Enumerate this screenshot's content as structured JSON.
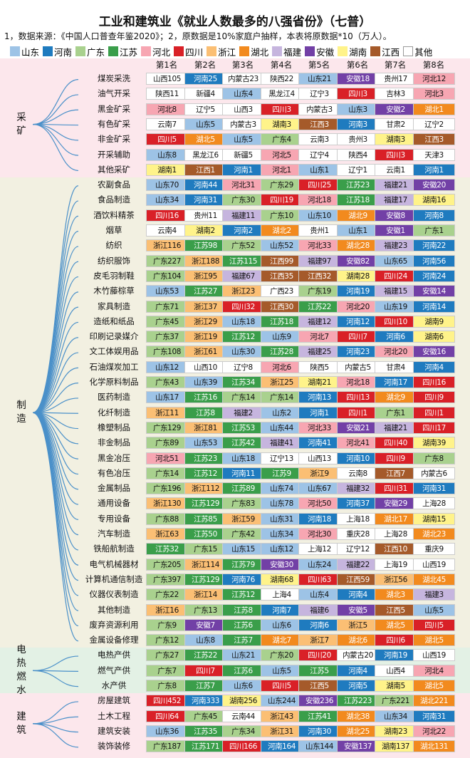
{
  "title": "工业和建筑业《就业人数最多的八强省份》（七普）",
  "source": "1，数据来源：《中国人口普查年鉴2020》；2，原数据是10%家庭户抽样，本表将原数据*10（万人）。",
  "legend": [
    {
      "name": "山东",
      "color": "#9dc3e6"
    },
    {
      "name": "河南",
      "color": "#1f7bbf"
    },
    {
      "name": "广东",
      "color": "#a9d18e"
    },
    {
      "name": "江苏",
      "color": "#3a9e4a"
    },
    {
      "name": "河北",
      "color": "#f7a6b2"
    },
    {
      "name": "四川",
      "color": "#d92027"
    },
    {
      "name": "浙江",
      "color": "#fbbf74"
    },
    {
      "name": "湖北",
      "color": "#f28a1e"
    },
    {
      "name": "福建",
      "color": "#c6b5de"
    },
    {
      "name": "安徽",
      "color": "#7240a6"
    },
    {
      "name": "湖南",
      "color": "#fff38a"
    },
    {
      "name": "江西",
      "color": "#a55a2a"
    },
    {
      "name": "其他",
      "color": "#ffffff"
    }
  ],
  "dark_provinces": [
    "河南",
    "江苏",
    "四川",
    "湖北",
    "安徽",
    "江西"
  ],
  "rank_headers": [
    "第1名",
    "第2名",
    "第3名",
    "第4名",
    "第5名",
    "第6名",
    "第7名",
    "第8名"
  ],
  "categories": [
    {
      "name": "采矿",
      "rows": [
        {
          "industry": "煤炭采洗",
          "cells": [
            "山西105",
            "河南25",
            "内蒙古23",
            "陕西22",
            "山东21",
            "安徽18",
            "贵州17",
            "河北12"
          ]
        },
        {
          "industry": "油气开采",
          "cells": [
            "陕西11",
            "新疆4",
            "山东4",
            "黑龙江4",
            "辽宁3",
            "四川3",
            "吉林3",
            "河北3"
          ]
        },
        {
          "industry": "黑金矿采",
          "cells": [
            "河北8",
            "辽宁5",
            "山西3",
            "四川3",
            "内蒙古3",
            "山东3",
            "安徽2",
            "湖北1"
          ]
        },
        {
          "industry": "有色矿采",
          "cells": [
            "云南7",
            "山东5",
            "内蒙古3",
            "湖南3",
            "江西3",
            "河南3",
            "甘肃2",
            "辽宁2"
          ]
        },
        {
          "industry": "非金矿采",
          "cells": [
            "四川5",
            "湖北5",
            "山东5",
            "广东4",
            "云南3",
            "贵州3",
            "湖南3",
            "江西3"
          ]
        },
        {
          "industry": "开采辅助",
          "cells": [
            "山东8",
            "黑龙江6",
            "新疆5",
            "河北5",
            "辽宁4",
            "陕西4",
            "四川3",
            "天津3"
          ]
        },
        {
          "industry": "其他采矿",
          "cells": [
            "湖南1",
            "江西1",
            "河南1",
            "河北1",
            "山东1",
            "辽宁1",
            "云南1",
            "河南1"
          ]
        }
      ]
    },
    {
      "name": "制造",
      "rows": [
        {
          "industry": "农副食品",
          "cells": [
            "山东70",
            "河南44",
            "河北31",
            "广东29",
            "四川25",
            "江苏23",
            "福建21",
            "安徽20"
          ]
        },
        {
          "industry": "食品制造",
          "cells": [
            "山东34",
            "河南31",
            "广东30",
            "四川19",
            "河北18",
            "江苏18",
            "福建17",
            "湖南16"
          ]
        },
        {
          "industry": "酒饮料精茶",
          "cells": [
            "四川16",
            "贵州11",
            "福建11",
            "广东10",
            "山东10",
            "湖北9",
            "安徽8",
            "河南8"
          ]
        },
        {
          "industry": "烟草",
          "cells": [
            "云南4",
            "湖南2",
            "河南2",
            "湖北2",
            "贵州1",
            "山东1",
            "安徽1",
            "广东1"
          ]
        },
        {
          "industry": "纺织",
          "cells": [
            "浙江116",
            "江苏98",
            "广东52",
            "山东52",
            "河北33",
            "湖北28",
            "福建23",
            "河南22"
          ]
        },
        {
          "industry": "纺织服饰",
          "cells": [
            "广东227",
            "浙江188",
            "江苏115",
            "江西99",
            "福建97",
            "安徽82",
            "山东65",
            "河南56"
          ]
        },
        {
          "industry": "皮毛羽制鞋",
          "cells": [
            "广东104",
            "浙江95",
            "福建67",
            "江西35",
            "江西32",
            "湖南28",
            "四川24",
            "河南24"
          ]
        },
        {
          "industry": "木竹藤棕草",
          "cells": [
            "山东53",
            "江苏27",
            "浙江23",
            "广西23",
            "广东19",
            "河南19",
            "福建15",
            "安徽14"
          ]
        },
        {
          "industry": "家具制造",
          "cells": [
            "广东71",
            "浙江37",
            "四川32",
            "江西30",
            "江苏22",
            "河北20",
            "山东19",
            "河南14"
          ]
        },
        {
          "industry": "造纸和纸品",
          "cells": [
            "广东45",
            "浙江29",
            "山东18",
            "江苏18",
            "福建12",
            "河南12",
            "四川10",
            "湖南9"
          ]
        },
        {
          "industry": "印刷记录媒介",
          "cells": [
            "广东37",
            "浙江19",
            "江苏12",
            "山东9",
            "河北7",
            "四川7",
            "河南6",
            "湖南6"
          ]
        },
        {
          "industry": "文工体娱用品",
          "cells": [
            "广东108",
            "浙江61",
            "山东30",
            "江苏28",
            "福建25",
            "河南23",
            "河北20",
            "安徽16"
          ]
        },
        {
          "industry": "石油煤炭加工",
          "cells": [
            "山东12",
            "山西10",
            "辽宁8",
            "河北6",
            "陕西5",
            "内蒙古5",
            "甘肃4",
            "河南4"
          ]
        },
        {
          "industry": "化学原料制品",
          "cells": [
            "广东43",
            "山东39",
            "江苏34",
            "浙江25",
            "湖南21",
            "河北18",
            "河南17",
            "四川16"
          ]
        },
        {
          "industry": "医药制造",
          "cells": [
            "山东17",
            "江苏16",
            "广东14",
            "广东14",
            "河南13",
            "四川13",
            "湖北9",
            "四川9"
          ]
        },
        {
          "industry": "化纤制造",
          "cells": [
            "浙江11",
            "江苏8",
            "福建2",
            "山东2",
            "河南1",
            "四川1",
            "广东1",
            "四川1"
          ]
        },
        {
          "industry": "橡塑制品",
          "cells": [
            "广东129",
            "浙江81",
            "江苏53",
            "山东44",
            "河北33",
            "安徽21",
            "福建21",
            "四川17"
          ]
        },
        {
          "industry": "非金制品",
          "cells": [
            "广东89",
            "山东53",
            "江苏42",
            "福建41",
            "河南41",
            "河北41",
            "四川40",
            "湖南39"
          ]
        },
        {
          "industry": "黑金冶压",
          "cells": [
            "河北51",
            "江苏23",
            "山东18",
            "辽宁13",
            "山西13",
            "河南10",
            "四川9",
            "广东8"
          ]
        },
        {
          "industry": "有色冶压",
          "cells": [
            "广东14",
            "江苏12",
            "河南11",
            "江苏9",
            "浙江9",
            "云南8",
            "江西7",
            "内蒙古6"
          ]
        },
        {
          "industry": "金属制品",
          "cells": [
            "广东196",
            "浙江112",
            "江苏89",
            "山东74",
            "山东67",
            "福建32",
            "四川31",
            "河南31"
          ]
        },
        {
          "industry": "通用设备",
          "cells": [
            "浙江130",
            "江苏129",
            "广东83",
            "山东78",
            "河北50",
            "河南37",
            "安徽29",
            "上海28"
          ]
        },
        {
          "industry": "专用设备",
          "cells": [
            "广东88",
            "江苏85",
            "浙江59",
            "山东31",
            "河南18",
            "上海18",
            "湖北17",
            "湖南15"
          ]
        },
        {
          "industry": "汽车制造",
          "cells": [
            "浙江63",
            "江苏50",
            "广东42",
            "山东34",
            "河北30",
            "重庆28",
            "上海28",
            "湖北23"
          ]
        },
        {
          "industry": "铁船航制造",
          "cells": [
            "江苏32",
            "广东15",
            "山东15",
            "山东12",
            "上海12",
            "辽宁12",
            "江西10",
            "重庆9"
          ]
        },
        {
          "industry": "电气机械器材",
          "cells": [
            "广东205",
            "浙江114",
            "江苏79",
            "安徽30",
            "山东24",
            "福建22",
            "上海19",
            "山西19"
          ]
        },
        {
          "industry": "计算机通信制造",
          "cells": [
            "广东397",
            "江苏129",
            "河南76",
            "湖南68",
            "四川63",
            "江西59",
            "浙江56",
            "湖北45"
          ]
        },
        {
          "industry": "仪器仪表制造",
          "cells": [
            "广东22",
            "浙江14",
            "江苏12",
            "上海4",
            "山东4",
            "河南4",
            "湖北3",
            "福建3"
          ]
        },
        {
          "industry": "其他制造",
          "cells": [
            "浙江16",
            "广东13",
            "江苏8",
            "河南7",
            "福建6",
            "安徽5",
            "江西5",
            "山东5"
          ]
        },
        {
          "industry": "废弃资源利用",
          "cells": [
            "广东9",
            "安徽7",
            "江苏6",
            "山东6",
            "河南6",
            "浙江5",
            "湖北5",
            "四川5"
          ]
        },
        {
          "industry": "金属设备修理",
          "cells": [
            "广东12",
            "山东8",
            "江苏7",
            "湖北7",
            "浙江7",
            "湖北6",
            "四川6",
            "湖北5"
          ]
        }
      ]
    },
    {
      "name": "电热燃水",
      "rows": [
        {
          "industry": "电热产供",
          "cells": [
            "广东27",
            "江苏22",
            "山东21",
            "广东20",
            "四川20",
            "内蒙古20",
            "河南19",
            "山西19"
          ]
        },
        {
          "industry": "燃气产供",
          "cells": [
            "广东7",
            "四川7",
            "江苏6",
            "山东5",
            "江苏5",
            "河南4",
            "山西4",
            "河北4"
          ]
        },
        {
          "industry": "水产供",
          "cells": [
            "广东8",
            "江苏7",
            "山东6",
            "四川5",
            "江西5",
            "河南5",
            "湖南5",
            "湖北5"
          ]
        }
      ]
    },
    {
      "name": "建筑",
      "rows": [
        {
          "industry": "房屋建筑",
          "cells": [
            "四川452",
            "河南333",
            "湖南256",
            "山东244",
            "安徽236",
            "江苏223",
            "广东221",
            "湖北221"
          ]
        },
        {
          "industry": "土木工程",
          "cells": [
            "四川64",
            "广东45",
            "云南44",
            "浙江43",
            "江苏41",
            "湖北38",
            "山东34",
            "河南31"
          ]
        },
        {
          "industry": "建筑安装",
          "cells": [
            "山东36",
            "江苏35",
            "广东34",
            "浙江31",
            "河南30",
            "湖北25",
            "湖南23",
            "河北22"
          ]
        },
        {
          "industry": "装饰装修",
          "cells": [
            "广东187",
            "江苏171",
            "四川166",
            "河南164",
            "山东144",
            "安徽137",
            "湖南137",
            "湖北131"
          ]
        }
      ]
    }
  ]
}
